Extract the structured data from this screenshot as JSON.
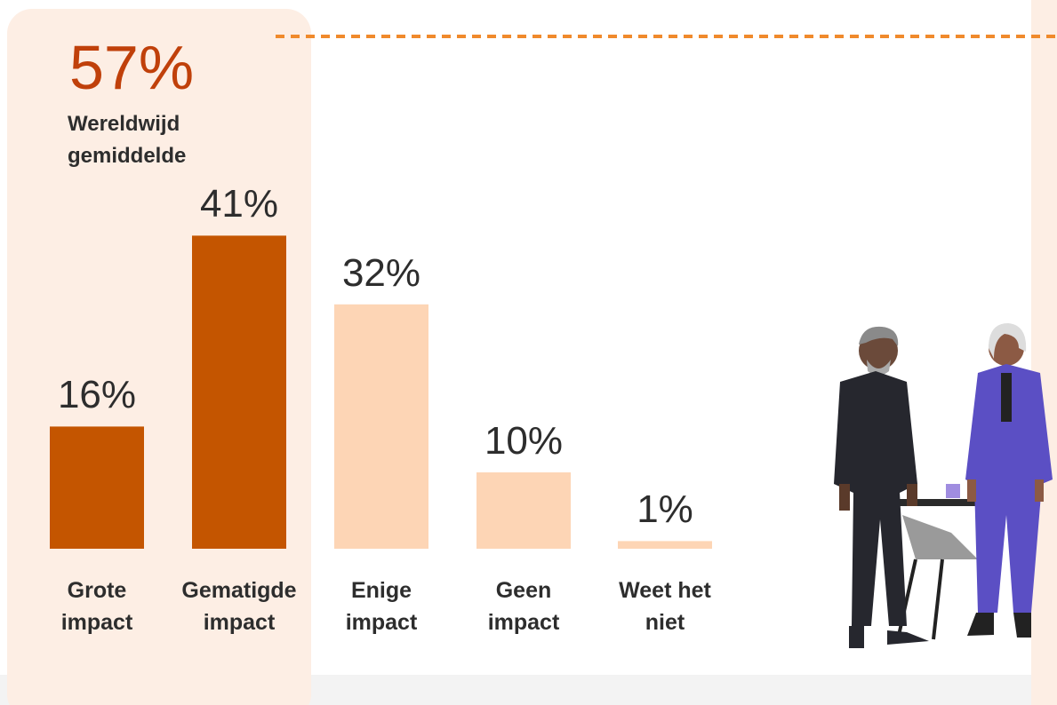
{
  "chart_data": {
    "type": "bar",
    "highlight": {
      "label": "57%",
      "text": "Wereldwijd gemiddelde"
    },
    "categories": [
      "Grote impact",
      "Gematigde impact",
      "Enige impact",
      "Geen impact",
      "Weet het niet"
    ],
    "values": [
      16,
      41,
      32,
      10,
      1
    ],
    "value_labels": [
      "16%",
      "41%",
      "32%",
      "10%",
      "1%"
    ],
    "colors": [
      "#c45500",
      "#c45500",
      "#fdd5b5",
      "#fdd5b5",
      "#fdd5b5"
    ]
  }
}
